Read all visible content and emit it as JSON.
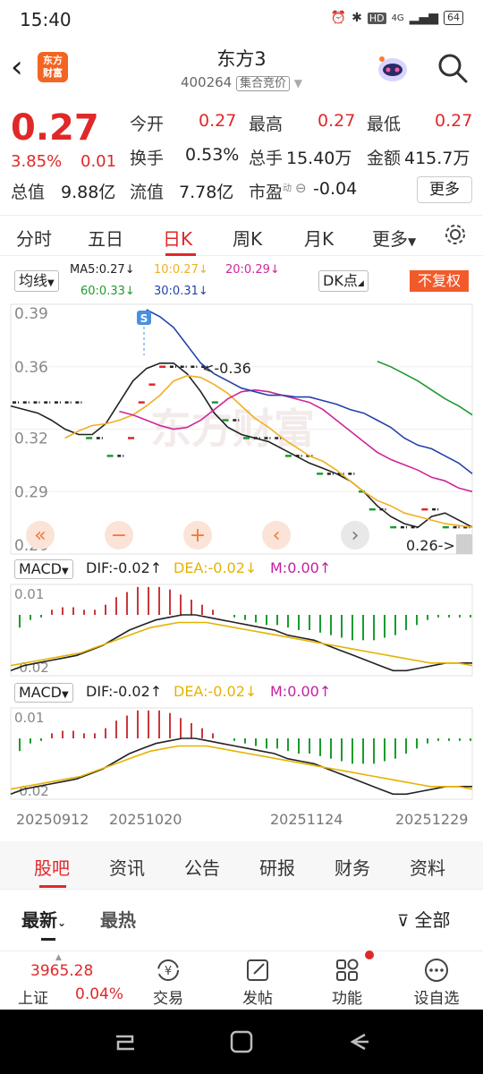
{
  "status_bar": {
    "time": "15:40",
    "network": "4G",
    "hd": "HD",
    "battery": "64"
  },
  "header": {
    "title": "东方3",
    "code": "400264",
    "auction_label": "集合竞价",
    "logo_text_1": "东方",
    "logo_text_2": "财富"
  },
  "quote": {
    "price": "0.27",
    "change_pct": "3.85%",
    "change": "0.01",
    "open_label": "今开",
    "open": "0.27",
    "high_label": "最高",
    "high": "0.27",
    "low_label": "最低",
    "low": "0.27",
    "turnover_label": "换手",
    "turnover": "0.53%",
    "volume_label": "总手",
    "volume": "15.40万",
    "amount_label": "金额",
    "amount": "415.7万",
    "total_mv_label": "总值",
    "total_mv": "9.88亿",
    "float_mv_label": "流值",
    "float_mv": "7.78亿",
    "pe_label": "市盈",
    "pe_superscript": "动",
    "pe": "-0.04",
    "more_label": "更多"
  },
  "period_tabs": [
    "分时",
    "五日",
    "日K",
    "周K",
    "月K",
    "更多"
  ],
  "active_period": "日K",
  "ma_legend": {
    "selector": "均线",
    "ma5": "MA5:0.27",
    "ma10": "10:0.27",
    "ma20": "20:0.29",
    "ma60": "60:0.33",
    "ma30": "30:0.31",
    "dk_label": "DK点",
    "rights_label": "不复权"
  },
  "colors": {
    "up": "#e02828",
    "down": "#1a9c2e",
    "ma5": "#222222",
    "ma10": "#f0b020",
    "ma20": "#d0259a",
    "ma30": "#2442a8",
    "ma60": "#1e9a2c"
  },
  "chart_data": {
    "type": "line",
    "title": "",
    "y_ticks": [
      "0.39",
      "0.36",
      "0.32",
      "0.29",
      "0.26"
    ],
    "ylim": [
      0.255,
      0.395
    ],
    "x_ticks": [
      "20250912",
      "20251020",
      "20251124",
      "20251229"
    ],
    "candles_close": [
      0.34,
      0.34,
      0.34,
      0.34,
      0.34,
      0.34,
      0.34,
      0.32,
      0.32,
      0.31,
      0.31,
      0.32,
      0.34,
      0.35,
      0.36,
      0.36,
      0.36,
      0.36,
      0.36,
      0.34,
      0.33,
      0.33,
      0.32,
      0.32,
      0.32,
      0.32,
      0.31,
      0.31,
      0.31,
      0.3,
      0.3,
      0.3,
      0.3,
      0.29,
      0.28,
      0.28,
      0.27,
      0.27,
      0.27,
      0.28,
      0.28,
      0.27,
      0.27,
      0.27
    ],
    "annotations": {
      "max_label": "<-0.36",
      "min_label": "0.26->",
      "signal": "S"
    },
    "series": [
      {
        "name": "MA5",
        "values": [
          0.338,
          0.336,
          0.334,
          0.33,
          0.325,
          0.322,
          0.322,
          0.328,
          0.34,
          0.352,
          0.359,
          0.362,
          0.362,
          0.356,
          0.346,
          0.334,
          0.326,
          0.322,
          0.32,
          0.318,
          0.314,
          0.31,
          0.306,
          0.303,
          0.3,
          0.296,
          0.29,
          0.282,
          0.276,
          0.272,
          0.27,
          0.276,
          0.278,
          0.274,
          0.27
        ]
      },
      {
        "name": "MA10",
        "values": [
          0.32,
          0.324,
          0.327,
          0.328,
          0.33,
          0.333,
          0.338,
          0.344,
          0.352,
          0.355,
          0.354,
          0.35,
          0.345,
          0.338,
          0.331,
          0.326,
          0.32,
          0.315,
          0.31,
          0.307,
          0.302,
          0.296,
          0.29,
          0.285,
          0.282,
          0.278,
          0.276,
          0.274,
          0.272,
          0.271,
          0.27
        ]
      },
      {
        "name": "MA20",
        "values": [
          0.335,
          0.333,
          0.33,
          0.327,
          0.325,
          0.326,
          0.33,
          0.336,
          0.342,
          0.346,
          0.347,
          0.346,
          0.344,
          0.342,
          0.34,
          0.336,
          0.33,
          0.324,
          0.318,
          0.312,
          0.308,
          0.305,
          0.302,
          0.298,
          0.296,
          0.292,
          0.29
        ]
      },
      {
        "name": "MA30",
        "values": [
          0.392,
          0.388,
          0.382,
          0.372,
          0.362,
          0.356,
          0.352,
          0.348,
          0.346,
          0.344,
          0.344,
          0.343,
          0.343,
          0.341,
          0.339,
          0.336,
          0.334,
          0.33,
          0.326,
          0.32,
          0.316,
          0.314,
          0.31,
          0.306,
          0.3
        ]
      },
      {
        "name": "MA60",
        "values": [
          0.363,
          0.36,
          0.356,
          0.352,
          0.347,
          0.342,
          0.338,
          0.333
        ]
      }
    ],
    "macd": {
      "dif_label": "DIF:-0.02",
      "dea_label": "DEA:-0.02",
      "m_label": "M:0.00",
      "top_tick": "0.01",
      "bottom_tick": "-0.02",
      "hist": [
        -0.005,
        -0.002,
        -0.001,
        0.002,
        0.003,
        0.003,
        0.002,
        0.002,
        0.004,
        0.007,
        0.009,
        0.011,
        0.011,
        0.011,
        0.01,
        0.008,
        0.006,
        0.004,
        0.002,
        0.0,
        -0.001,
        -0.002,
        -0.003,
        -0.004,
        -0.004,
        -0.005,
        -0.006,
        -0.006,
        -0.007,
        -0.008,
        -0.009,
        -0.01,
        -0.01,
        -0.01,
        -0.009,
        -0.008,
        -0.006,
        -0.004,
        -0.002,
        -0.001,
        -0.001,
        -0.001,
        -0.001
      ],
      "dif": [
        -0.022,
        -0.02,
        -0.019,
        -0.018,
        -0.017,
        -0.016,
        -0.014,
        -0.012,
        -0.009,
        -0.006,
        -0.004,
        -0.002,
        -0.001,
        0.0,
        0.0,
        -0.001,
        -0.002,
        -0.003,
        -0.004,
        -0.005,
        -0.006,
        -0.008,
        -0.009,
        -0.01,
        -0.012,
        -0.014,
        -0.016,
        -0.018,
        -0.02,
        -0.022,
        -0.022,
        -0.021,
        -0.02,
        -0.019,
        -0.019,
        -0.019
      ],
      "dea": [
        -0.02,
        -0.019,
        -0.018,
        -0.017,
        -0.016,
        -0.015,
        -0.013,
        -0.011,
        -0.009,
        -0.007,
        -0.005,
        -0.004,
        -0.003,
        -0.003,
        -0.003,
        -0.004,
        -0.005,
        -0.006,
        -0.007,
        -0.008,
        -0.009,
        -0.01,
        -0.011,
        -0.012,
        -0.013,
        -0.014,
        -0.015,
        -0.016,
        -0.017,
        -0.018,
        -0.019,
        -0.019,
        -0.019,
        -0.02
      ]
    }
  },
  "macd_panels": [
    {
      "selector": "MACD",
      "dif": "DIF:-0.02",
      "dea": "DEA:-0.02",
      "m": "M:0.00"
    },
    {
      "selector": "MACD",
      "dif": "DIF:-0.02",
      "dea": "DEA:-0.02",
      "m": "M:0.00"
    }
  ],
  "community_tabs": [
    "股吧",
    "资讯",
    "公告",
    "研报",
    "财务",
    "资料"
  ],
  "sort": {
    "latest": "最新",
    "hottest": "最热",
    "filter": "全部"
  },
  "bottom_nav": {
    "index_value": "3965.28",
    "index_name": "上证",
    "index_pct": "0.04%",
    "items": [
      "交易",
      "发帖",
      "功能",
      "设自选"
    ]
  }
}
